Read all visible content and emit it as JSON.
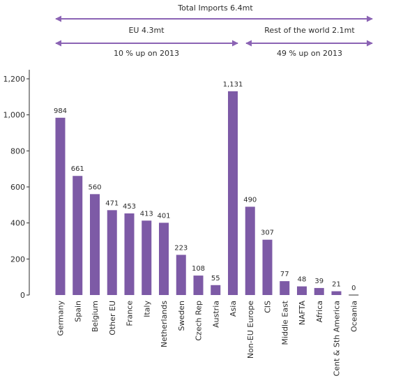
{
  "colors": {
    "bar": "#7d5aa6",
    "arrow": "#8b63b4",
    "axis": "#2b2b2b",
    "text": "#2b2b2b"
  },
  "annotations": {
    "total": "Total Imports 6.4mt",
    "eu": "EU 4.3mt",
    "eu_change": "10 % up on 2013",
    "row": "Rest of the world 2.1mt",
    "row_change": "49 % up on 2013"
  },
  "chart_data": {
    "type": "bar",
    "title": "",
    "xlabel": "",
    "ylabel": "",
    "ylim": [
      0,
      1200
    ],
    "yticks": [
      0,
      200,
      400,
      600,
      800,
      "1,000",
      "1,200"
    ],
    "grid": false,
    "categories": [
      "Germany",
      "Spain",
      "Belgium",
      "Other EU",
      "France",
      "Italy",
      "Netherlands",
      "Sweden",
      "Czech Rep",
      "Austria",
      "Asia",
      "Non-EU Europe",
      "CIS",
      "Middle East",
      "NAFTA",
      "Africa",
      "Cent & Sth America",
      "Oceania"
    ],
    "values": [
      984,
      661,
      560,
      471,
      453,
      413,
      401,
      223,
      108,
      55,
      1131,
      490,
      307,
      77,
      48,
      39,
      21,
      0
    ],
    "value_labels": [
      "984",
      "661",
      "560",
      "471",
      "453",
      "413",
      "401",
      "223",
      "108",
      "55",
      "1,131",
      "490",
      "307",
      "77",
      "48",
      "39",
      "21",
      "0"
    ]
  }
}
